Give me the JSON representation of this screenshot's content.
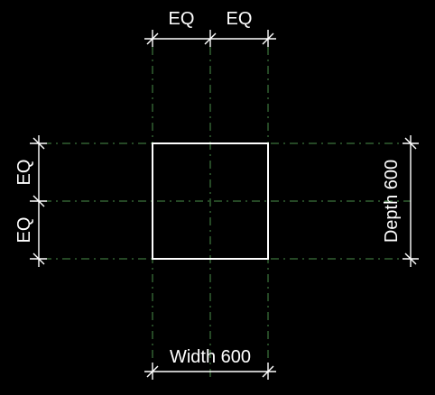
{
  "drawing": {
    "background_color": "#000000",
    "line_color": "#ffffff",
    "reference_plane_color": "#4a8f4a",
    "top_dimension": {
      "segment_labels": [
        "EQ",
        "EQ"
      ]
    },
    "left_dimension": {
      "segment_labels": [
        "EQ",
        "EQ"
      ]
    },
    "right_dimension": {
      "label": "Depth 600"
    },
    "bottom_dimension": {
      "label": "Width 600"
    },
    "element": {
      "shape": "square",
      "width": 600,
      "depth": 600
    }
  }
}
